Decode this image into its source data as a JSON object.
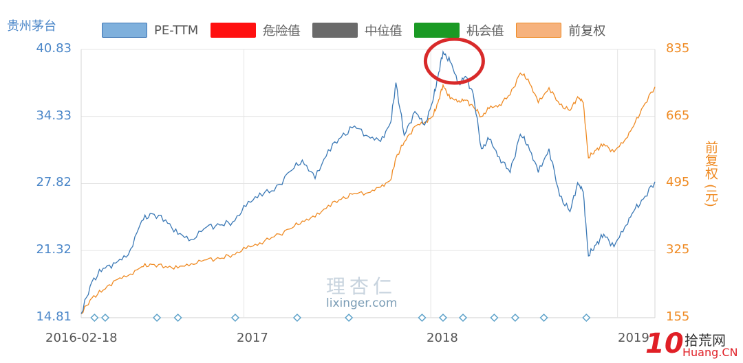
{
  "chart_data": {
    "type": "line",
    "title": "贵州茅台",
    "legend": [
      {
        "label": "PE-TTM",
        "color": "#7fb0dc",
        "border": "#3c74b4",
        "active": true
      },
      {
        "label": "危险值",
        "color": "#ff1010",
        "border": "#ff1010",
        "active": false
      },
      {
        "label": "中位值",
        "color": "#6a6a6a",
        "border": "#6a6a6a",
        "active": false
      },
      {
        "label": "机会值",
        "color": "#1a9a24",
        "border": "#1a9a24",
        "active": false
      },
      {
        "label": "前复权",
        "color": "#f6b27d",
        "border": "#ef8a22",
        "active": true
      }
    ],
    "y_left": {
      "ticks": [
        "40.83",
        "34.33",
        "27.82",
        "21.32",
        "14.81"
      ],
      "range": [
        14.81,
        40.83
      ]
    },
    "y_right": {
      "label": "前复权 (元)",
      "ticks": [
        "835",
        "665",
        "495",
        "325",
        "155"
      ],
      "range": [
        155,
        835
      ]
    },
    "x_axis": {
      "ticks": [
        "2016-02-18",
        "2017",
        "2018",
        "2019"
      ],
      "range": [
        "2016-02-18",
        "2019-03-15"
      ]
    },
    "colors": {
      "pe": "#3a78b5",
      "price": "#ef8a22",
      "grid": "#e4e4e4",
      "marker": "#5aa0c8",
      "highlight": "#d82a2a"
    },
    "series": [
      {
        "name": "PE-TTM",
        "axis": "left",
        "x": [
          "2016-02-18",
          "2016-03-10",
          "2016-04-01",
          "2016-04-25",
          "2016-05-20",
          "2016-06-15",
          "2016-07-05",
          "2016-08-01",
          "2016-08-25",
          "2016-09-20",
          "2016-10-20",
          "2016-11-15",
          "2016-12-10",
          "2017-01-05",
          "2017-02-01",
          "2017-03-01",
          "2017-04-01",
          "2017-04-25",
          "2017-05-20",
          "2017-06-15",
          "2017-07-10",
          "2017-08-05",
          "2017-09-01",
          "2017-09-25",
          "2017-10-15",
          "2017-10-25",
          "2017-11-10",
          "2017-12-01",
          "2017-12-20",
          "2018-01-05",
          "2018-01-15",
          "2018-01-25",
          "2018-02-08",
          "2018-02-25",
          "2018-03-10",
          "2018-03-25",
          "2018-04-10",
          "2018-04-25",
          "2018-05-15",
          "2018-06-05",
          "2018-06-25",
          "2018-07-10",
          "2018-07-30",
          "2018-08-20",
          "2018-09-10",
          "2018-09-30",
          "2018-10-15",
          "2018-10-26",
          "2018-11-05",
          "2018-11-20",
          "2018-12-05",
          "2018-12-25",
          "2019-01-15",
          "2019-02-01",
          "2019-02-20",
          "2019-03-15"
        ],
        "y": [
          15.2,
          18.3,
          19.6,
          20.1,
          20.9,
          24.2,
          24.9,
          24.3,
          22.9,
          22.4,
          23.6,
          23.8,
          24.1,
          25.6,
          26.9,
          27.1,
          29.0,
          30.1,
          28.3,
          31.1,
          32.3,
          33.4,
          32.4,
          31.9,
          33.8,
          37.6,
          32.5,
          34.8,
          33.5,
          35.8,
          38.2,
          40.6,
          39.6,
          37.5,
          38.2,
          36.5,
          31.2,
          32.1,
          30.4,
          28.9,
          32.6,
          31.6,
          28.9,
          31.2,
          26.6,
          25.1,
          27.9,
          27.0,
          20.8,
          21.9,
          22.9,
          21.7,
          23.6,
          25.1,
          26.3,
          28.0
        ]
      },
      {
        "name": "前复权",
        "axis": "right",
        "x": [
          "2016-02-18",
          "2016-03-10",
          "2016-04-01",
          "2016-04-25",
          "2016-05-20",
          "2016-06-15",
          "2016-07-05",
          "2016-08-01",
          "2016-08-25",
          "2016-09-20",
          "2016-10-20",
          "2016-11-15",
          "2016-12-10",
          "2017-01-05",
          "2017-02-01",
          "2017-03-01",
          "2017-04-01",
          "2017-04-25",
          "2017-05-20",
          "2017-06-15",
          "2017-07-10",
          "2017-08-05",
          "2017-09-01",
          "2017-09-25",
          "2017-10-15",
          "2017-10-25",
          "2017-11-10",
          "2017-12-01",
          "2017-12-20",
          "2018-01-05",
          "2018-01-15",
          "2018-01-25",
          "2018-02-08",
          "2018-02-25",
          "2018-03-10",
          "2018-03-25",
          "2018-04-10",
          "2018-04-25",
          "2018-05-15",
          "2018-06-05",
          "2018-06-25",
          "2018-07-10",
          "2018-07-30",
          "2018-08-20",
          "2018-09-10",
          "2018-09-30",
          "2018-10-15",
          "2018-10-26",
          "2018-11-05",
          "2018-11-20",
          "2018-12-05",
          "2018-12-25",
          "2019-01-15",
          "2019-02-01",
          "2019-02-20",
          "2019-03-15"
        ],
        "y": [
          165,
          205,
          225,
          250,
          262,
          284,
          290,
          285,
          281,
          292,
          302,
          305,
          315,
          330,
          345,
          360,
          380,
          400,
          410,
          440,
          455,
          470,
          472,
          486,
          505,
          560,
          600,
          640,
          650,
          665,
          700,
          745,
          710,
          705,
          706,
          690,
          665,
          685,
          695,
          720,
          775,
          760,
          700,
          738,
          695,
          680,
          715,
          700,
          560,
          580,
          595,
          575,
          605,
          640,
          690,
          740
        ]
      }
    ],
    "markers_x": [
      "2016-03-15",
      "2016-04-05",
      "2016-07-15",
      "2016-08-25",
      "2016-12-15",
      "2017-04-15",
      "2017-07-25",
      "2017-12-15",
      "2018-01-25",
      "2018-03-05",
      "2018-05-05",
      "2018-06-15",
      "2018-08-10",
      "2018-11-01"
    ],
    "highlight_x": "2018-02-08",
    "watermark": {
      "cn": "理杏仁",
      "en": "lixinger.com"
    },
    "brand": {
      "num": "10",
      "name": "拾荒网",
      "url": "Huang.CN"
    }
  }
}
